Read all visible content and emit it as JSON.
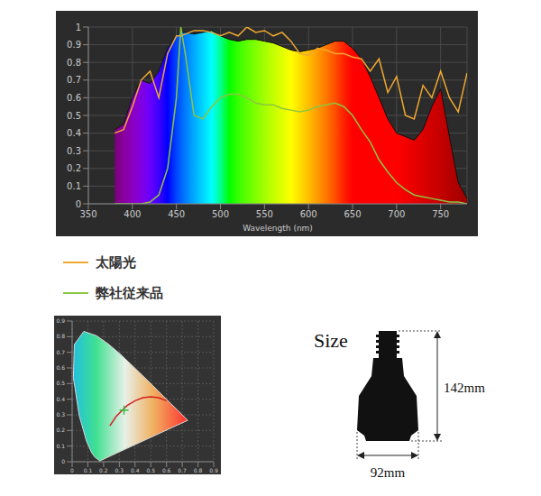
{
  "chart_data": [
    {
      "type": "area",
      "xlabel": "Wavelength (nm)",
      "xlim": [
        350,
        780
      ],
      "xticks": [
        350,
        400,
        450,
        500,
        550,
        600,
        650,
        700,
        750
      ],
      "ylim": [
        0,
        1
      ],
      "yticks": [
        0,
        0.1,
        0.2,
        0.3,
        0.4,
        0.5,
        0.6,
        0.7,
        0.8,
        0.9,
        1
      ],
      "grid": true,
      "legend": "bottom",
      "x": [
        380,
        390,
        400,
        410,
        420,
        430,
        440,
        450,
        455,
        460,
        470,
        480,
        490,
        500,
        510,
        520,
        530,
        540,
        550,
        560,
        570,
        580,
        590,
        600,
        610,
        620,
        630,
        640,
        650,
        660,
        670,
        680,
        690,
        700,
        710,
        720,
        730,
        740,
        750,
        760,
        770,
        780
      ],
      "series": [
        {
          "type": "area",
          "color": "#111111",
          "values": [
            0.42,
            0.45,
            0.6,
            0.7,
            0.68,
            0.75,
            0.88,
            0.95,
            0.97,
            0.97,
            0.96,
            0.97,
            0.98,
            0.95,
            0.93,
            0.92,
            0.93,
            0.93,
            0.92,
            0.91,
            0.89,
            0.87,
            0.86,
            0.87,
            0.88,
            0.9,
            0.92,
            0.92,
            0.88,
            0.82,
            0.72,
            0.6,
            0.48,
            0.4,
            0.38,
            0.36,
            0.42,
            0.55,
            0.65,
            0.38,
            0.12,
            0.03
          ]
        },
        {
          "name": "太陽光",
          "type": "line",
          "color": "#f0a830",
          "values": [
            0.4,
            0.42,
            0.55,
            0.7,
            0.75,
            0.6,
            0.85,
            0.95,
            0.95,
            0.96,
            0.98,
            0.98,
            0.97,
            0.95,
            0.97,
            0.95,
            1.0,
            0.97,
            0.98,
            0.95,
            0.97,
            0.92,
            0.85,
            0.84,
            0.88,
            0.87,
            0.85,
            0.85,
            0.83,
            0.82,
            0.75,
            0.82,
            0.63,
            0.72,
            0.5,
            0.48,
            0.67,
            0.6,
            0.75,
            0.6,
            0.52,
            0.74
          ]
        },
        {
          "name": "弊社従来品",
          "type": "line",
          "color": "#8cc63f",
          "values": [
            0,
            0,
            0,
            0,
            0.01,
            0.05,
            0.2,
            0.6,
            1.0,
            0.85,
            0.5,
            0.48,
            0.55,
            0.6,
            0.62,
            0.62,
            0.6,
            0.57,
            0.56,
            0.56,
            0.54,
            0.53,
            0.52,
            0.53,
            0.55,
            0.56,
            0.57,
            0.55,
            0.5,
            0.42,
            0.35,
            0.25,
            0.18,
            0.12,
            0.08,
            0.05,
            0.04,
            0.03,
            0.02,
            0.01,
            0.01,
            0
          ]
        }
      ]
    },
    {
      "type": "scatter",
      "xlim": [
        0,
        0.9
      ],
      "ylim": [
        0,
        0.9
      ],
      "xticks": [
        0,
        0.1,
        0.2,
        0.3,
        0.4,
        0.5,
        0.6,
        0.7,
        0.8,
        0.9
      ],
      "yticks": [
        0,
        0.1,
        0.2,
        0.3,
        0.4,
        0.5,
        0.6,
        0.7,
        0.8,
        0.9
      ],
      "grid": true,
      "series": [
        {
          "type": "line",
          "color": "#d8d8d8",
          "x": [
            0.175,
            0.17,
            0.144,
            0.124,
            0.091,
            0.045,
            0.008,
            0.014,
            0.074,
            0.155,
            0.229,
            0.302,
            0.373,
            0.444,
            0.513,
            0.575,
            0.627,
            0.667,
            0.735,
            0.175
          ],
          "values": [
            0.005,
            0.01,
            0.03,
            0.058,
            0.133,
            0.295,
            0.538,
            0.75,
            0.834,
            0.806,
            0.754,
            0.692,
            0.624,
            0.555,
            0.487,
            0.424,
            0.372,
            0.333,
            0.265,
            0.005
          ]
        },
        {
          "type": "line",
          "color": "#d42020",
          "x": [
            0.24,
            0.28,
            0.31,
            0.35,
            0.4,
            0.45,
            0.5,
            0.55,
            0.6
          ],
          "values": [
            0.23,
            0.29,
            0.32,
            0.36,
            0.39,
            0.41,
            0.415,
            0.41,
            0.39
          ]
        },
        {
          "type": "scatter",
          "marker": "plus",
          "color": "#30c040",
          "x": [
            0.33
          ],
          "values": [
            0.33
          ]
        }
      ]
    }
  ],
  "size_diagram": {
    "title": "Size",
    "height_label": "142mm",
    "width_label": "92mm"
  }
}
